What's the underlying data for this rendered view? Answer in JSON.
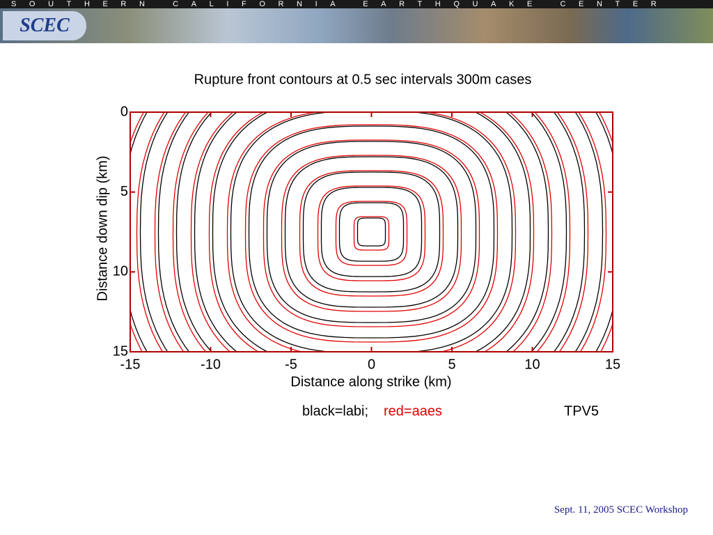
{
  "header": {
    "banner_text": "SOUTHERN CALIFORNIA EARTHQUAKE CENTER",
    "logo": "SCEC"
  },
  "chart_data": {
    "type": "contour",
    "title": "Rupture front contours at 0.5 sec intervals   300m cases",
    "x_label": "Distance along strike (km)",
    "y_label": "Distance down dip (km)",
    "xlim": [
      -15,
      15
    ],
    "ylim": [
      0,
      15
    ],
    "y_inverted": true,
    "xticks": [
      -15,
      -10,
      -5,
      0,
      5,
      10,
      15
    ],
    "yticks": [
      0,
      5,
      10,
      15
    ],
    "frame_color": "#b00000",
    "series": [
      {
        "name": "black=labi;",
        "color": "#000000"
      },
      {
        "name": "red=aaes",
        "color": "#e00000"
      }
    ],
    "annotation": "TPV5"
  },
  "footer": "Sept. 11, 2005 SCEC Workshop"
}
